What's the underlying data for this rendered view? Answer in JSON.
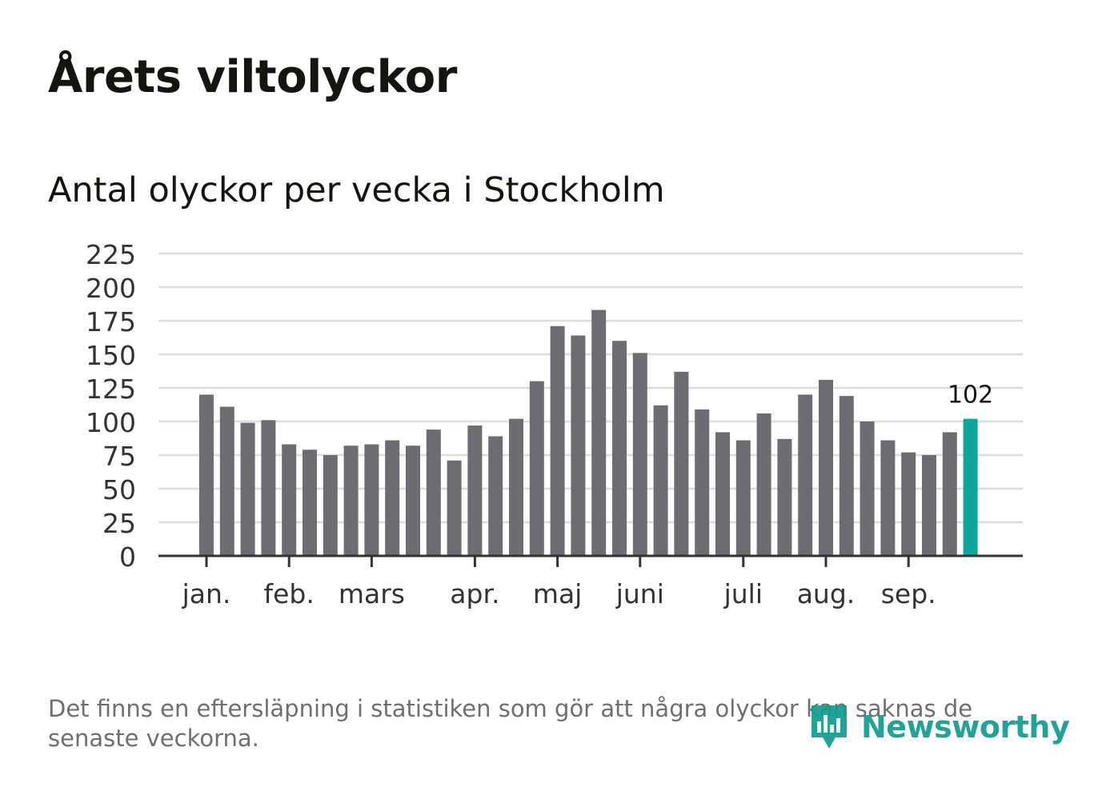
{
  "title": "Årets viltolyckor",
  "subtitle": "Antal olyckor per vecka i Stockholm",
  "footnote": "Det finns en eftersläpning i statistiken som gör att några olyckor kan saknas de senaste veckorna.",
  "brand": {
    "name": "Newsworthy",
    "icon": "newsworthy-logo-icon"
  },
  "colors": {
    "bar": "#6d6c72",
    "highlight": "#0fa59a",
    "grid": "#dcdcdc",
    "axis": "#333333",
    "text": "#333333"
  },
  "chart_data": {
    "type": "bar",
    "title": "Årets viltolyckor",
    "subtitle": "Antal olyckor per vecka i Stockholm",
    "xlabel": "",
    "ylabel": "",
    "ylim": [
      0,
      225
    ],
    "yticks": [
      0,
      25,
      50,
      75,
      100,
      125,
      150,
      175,
      200,
      225
    ],
    "grid": true,
    "x": [
      1,
      2,
      3,
      4,
      5,
      6,
      7,
      8,
      9,
      10,
      11,
      12,
      13,
      14,
      15,
      16,
      17,
      18,
      19,
      20,
      21,
      22,
      23,
      24,
      25,
      26,
      27,
      28,
      29,
      30,
      31,
      32,
      33,
      34,
      35,
      36,
      37,
      38
    ],
    "values": [
      120,
      111,
      99,
      101,
      83,
      79,
      75,
      82,
      83,
      86,
      82,
      94,
      71,
      97,
      89,
      102,
      130,
      171,
      164,
      183,
      160,
      151,
      112,
      137,
      109,
      92,
      86,
      106,
      87,
      120,
      131,
      119,
      100,
      86,
      77,
      75,
      92,
      102
    ],
    "highlight_index": 37,
    "highlight_label": "102",
    "month_ticks": [
      {
        "label": "jan.",
        "week": 1
      },
      {
        "label": "feb.",
        "week": 5
      },
      {
        "label": "mars",
        "week": 9
      },
      {
        "label": "apr.",
        "week": 14
      },
      {
        "label": "maj",
        "week": 18
      },
      {
        "label": "juni",
        "week": 22
      },
      {
        "label": "juli",
        "week": 27
      },
      {
        "label": "aug.",
        "week": 31
      },
      {
        "label": "sep.",
        "week": 35
      }
    ]
  }
}
